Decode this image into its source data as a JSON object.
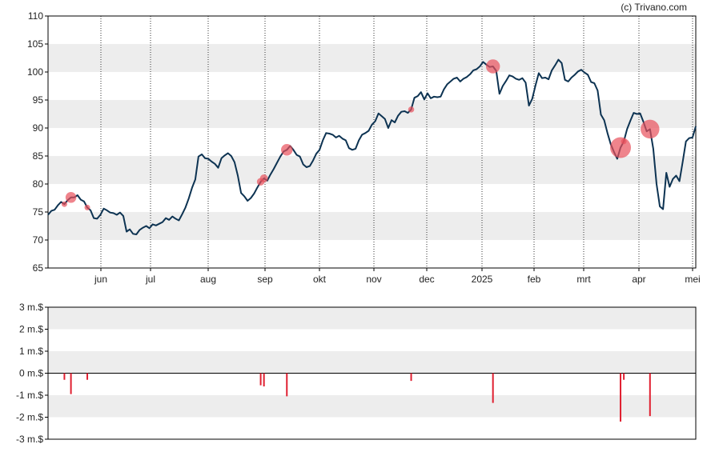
{
  "credit": "(c) Trivano.com",
  "colors": {
    "price_line": "#0d3352",
    "band": "#ededed",
    "bubble": "#e8505b",
    "volume_bar": "#e01f30",
    "grid": "#333333",
    "axis": "#000000"
  },
  "chart_data": [
    {
      "type": "line",
      "title": "",
      "x_tick_labels": [
        "jun",
        "jul",
        "aug",
        "sep",
        "okt",
        "nov",
        "dec",
        "2025",
        "feb",
        "mrt",
        "apr",
        "mei"
      ],
      "y_tick_labels": [
        "110",
        "105",
        "100",
        "95",
        "90",
        "85",
        "80",
        "75",
        "70",
        "65"
      ],
      "ylim": [
        65,
        110
      ],
      "alternating_bands": true,
      "vertical_grid": "dotted",
      "series": [
        {
          "values": [
            74.5,
            75.2,
            75.4,
            76.2,
            76.8,
            76.4,
            77.1,
            77.6,
            77.6,
            78.0,
            77.2,
            76.9,
            75.8,
            75.3,
            73.9,
            73.8,
            74.5,
            75.6,
            75.3,
            74.9,
            74.8,
            74.5,
            74.9,
            74.3,
            71.5,
            71.9,
            71.1,
            71.0,
            71.8,
            72.2,
            72.5,
            72.1,
            72.8,
            72.6,
            72.9,
            73.2,
            73.9,
            73.6,
            74.2,
            73.8,
            73.5,
            74.6,
            75.8,
            77.4,
            79.3,
            80.8,
            84.9,
            85.3,
            84.6,
            84.5,
            84.0,
            83.6,
            82.9,
            84.6,
            85.1,
            85.5,
            85.0,
            83.9,
            81.5,
            78.4,
            77.8,
            77.0,
            77.5,
            78.3,
            79.4,
            80.4,
            81.0,
            80.6,
            81.7,
            82.7,
            83.8,
            84.9,
            85.8,
            86.1,
            86.8,
            86.1,
            85.2,
            84.9,
            83.5,
            83.0,
            83.2,
            84.2,
            85.4,
            86.1,
            87.8,
            89.1,
            89.0,
            88.8,
            88.3,
            88.6,
            88.1,
            87.8,
            86.4,
            86.1,
            86.3,
            87.8,
            88.8,
            89.1,
            89.5,
            90.6,
            91.2,
            92.6,
            92.1,
            91.6,
            90.0,
            91.4,
            91.0,
            92.2,
            92.9,
            93.0,
            92.7,
            93.3,
            95.4,
            95.7,
            96.4,
            95.1,
            96.2,
            95.3,
            95.6,
            95.5,
            95.6,
            96.9,
            97.8,
            98.3,
            98.8,
            99.0,
            98.3,
            98.8,
            99.1,
            99.6,
            100.3,
            100.5,
            101.0,
            101.8,
            101.3,
            100.9,
            101.0,
            100.2,
            96.1,
            97.5,
            98.4,
            99.4,
            99.2,
            98.8,
            98.6,
            98.9,
            98.1,
            94.0,
            95.2,
            97.6,
            99.8,
            98.9,
            99.0,
            98.7,
            100.3,
            101.2,
            102.2,
            101.6,
            98.6,
            98.3,
            99.0,
            99.5,
            100.1,
            100.4,
            99.9,
            99.5,
            98.2,
            98.0,
            96.7,
            92.4,
            91.4,
            89.1,
            87.1,
            85.7,
            84.5,
            86.5,
            87.6,
            89.8,
            91.3,
            92.7,
            92.5,
            92.6,
            91.1,
            89.4,
            89.8,
            86.3,
            80.0,
            76.0,
            75.5,
            82.0,
            79.5,
            80.9,
            81.5,
            80.5,
            84.0,
            87.6,
            88.2,
            88.3,
            90.3
          ],
          "points_note": "approx. daily closes, late May 2024 – early May 2025"
        }
      ]
    },
    {
      "type": "bar",
      "title": "",
      "unit": "m.$",
      "y_tick_labels": [
        "3 m.$",
        "2 m.$",
        "1 m.$",
        "0 m.$",
        "-1 m.$",
        "-2 m.$",
        "-3 m.$"
      ],
      "ylim": [
        -3,
        3
      ],
      "alternating_bands": true,
      "bars": [
        {
          "index": 5,
          "value": -0.3
        },
        {
          "index": 7,
          "value": -0.95
        },
        {
          "index": 12,
          "value": -0.3
        },
        {
          "index": 65,
          "value": -0.55
        },
        {
          "index": 66,
          "value": -0.6
        },
        {
          "index": 73,
          "value": -1.05
        },
        {
          "index": 111,
          "value": -0.35
        },
        {
          "index": 136,
          "value": -1.35
        },
        {
          "index": 175,
          "value": -2.2
        },
        {
          "index": 176,
          "value": -0.3
        },
        {
          "index": 184,
          "value": -1.95
        }
      ]
    }
  ]
}
